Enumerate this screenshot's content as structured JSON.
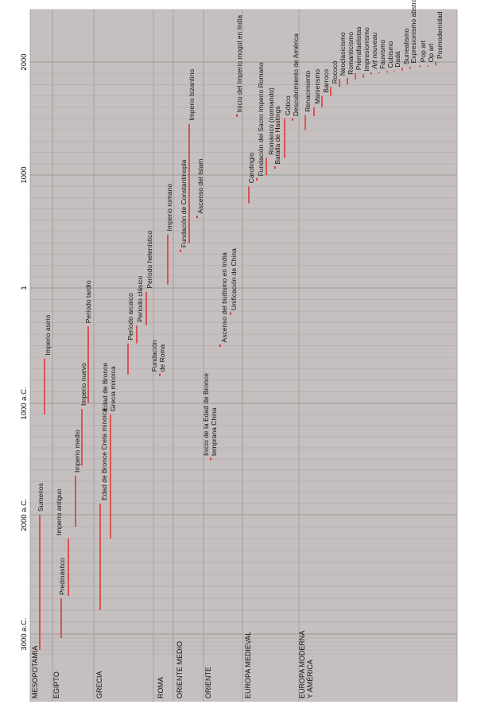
{
  "timeline": {
    "time_labels": [
      {
        "label": "3000 a.C.",
        "year": -3000
      },
      {
        "label": "2000 a.C.",
        "year": -2000
      },
      {
        "label": "1000 a.C.",
        "year": -1000
      },
      {
        "label": "1",
        "year": 1
      },
      {
        "label": "1000",
        "year": 1000
      },
      {
        "label": "2000",
        "year": 2000
      }
    ],
    "regions": [
      {
        "id": "meso",
        "lines": [
          "MESOPOTAMIA"
        ]
      },
      {
        "id": "egipto",
        "lines": [
          "EGIPTO"
        ]
      },
      {
        "id": "grecia",
        "lines": [
          "GRECIA"
        ]
      },
      {
        "id": "roma",
        "lines": [
          "ROMA"
        ]
      },
      {
        "id": "om",
        "lines": [
          "ORIENTE MEDIO"
        ]
      },
      {
        "id": "or",
        "lines": [
          "ORIENTE"
        ]
      },
      {
        "id": "em",
        "lines": [
          "EUROPA MEDIEVAL"
        ]
      },
      {
        "id": "ema",
        "lines": [
          "EUROPA MODERNA",
          "Y AMÉRICA"
        ]
      }
    ],
    "events": [
      {
        "lines": [
          "Sumerios"
        ],
        "start": -3400,
        "end": -2000
      },
      {
        "lines": [
          "Predinástico"
        ],
        "start": -3100,
        "end": -2700
      },
      {
        "lines": [
          "Imperio antiguo"
        ],
        "start": -2680,
        "end": -2200
      },
      {
        "lines": [
          "Imperio medio"
        ],
        "start": -2100,
        "end": -1650
      },
      {
        "lines": [
          "Imperio nuevo"
        ],
        "start": -1560,
        "end": -1050
      },
      {
        "lines": [
          "Período tardío"
        ],
        "start": -1000,
        "end": -332
      },
      {
        "lines": [
          "Imperio asirio"
        ],
        "start": -1100,
        "end": -612
      },
      {
        "lines": [
          "Edad de Bronce Creta minoica"
        ],
        "start": -2800,
        "end": -1900
      },
      {
        "lines": [
          "Edad de Bronce",
          "Grecia minoica"
        ],
        "start": -2200,
        "end": -1100
      },
      {
        "lines": [
          "Período arcaico"
        ],
        "start": -750,
        "end": -480
      },
      {
        "lines": [
          "Período clásico"
        ],
        "start": -480,
        "end": -323
      },
      {
        "lines": [
          "Período helenístico"
        ],
        "start": -323,
        "end": -31
      },
      {
        "lines": [
          "Fundación",
          "de Roma"
        ],
        "start": -753,
        "end": -753
      },
      {
        "lines": [
          "Imperio romano"
        ],
        "start": 30,
        "end": 476
      },
      {
        "lines": [
          "Fundación de Constantinopla"
        ],
        "start": 330,
        "end": 330
      },
      {
        "lines": [
          "Imperio bizantino"
        ],
        "start": 395,
        "end": 1453
      },
      {
        "lines": [
          "Ascenso del Islam"
        ],
        "start": 630,
        "end": 630
      },
      {
        "lines": [
          "Inicio de la Edad de Bronce",
          "temprana China"
        ],
        "start": -1500,
        "end": -1500
      },
      {
        "lines": [
          "Ascenso del budismo en India"
        ],
        "start": -500,
        "end": -500
      },
      {
        "lines": [
          "Unificación de China"
        ],
        "start": -221,
        "end": -221
      },
      {
        "lines": [
          "Inicio del Imperio mogol en India"
        ],
        "start": 1526,
        "end": 1526
      },
      {
        "lines": [
          "Carolingio"
        ],
        "start": 750,
        "end": 900
      },
      {
        "lines": [
          "Fundación del Sacro Imperio Romano"
        ],
        "start": 962,
        "end": 962
      },
      {
        "lines": [
          "Románico (normando)"
        ],
        "start": 1000,
        "end": 1150
      },
      {
        "lines": [
          "Batalla de Hastings"
        ],
        "start": 1066,
        "end": 1066
      },
      {
        "lines": [
          "Gótico"
        ],
        "start": 1150,
        "end": 1500
      },
      {
        "lines": [
          "Descubrimiento de América"
        ],
        "start": 1492,
        "end": 1492
      },
      {
        "lines": [
          "Renacimiento"
        ],
        "start": 1400,
        "end": 1530
      },
      {
        "lines": [
          "Manierismo"
        ],
        "start": 1520,
        "end": 1600
      },
      {
        "lines": [
          "Barroco"
        ],
        "start": 1600,
        "end": 1700
      },
      {
        "lines": [
          "Rococó"
        ],
        "start": 1700,
        "end": 1780
      },
      {
        "lines": [
          "Neoclasicismo"
        ],
        "start": 1780,
        "end": 1850
      },
      {
        "lines": [
          "Romanticismo"
        ],
        "start": 1800,
        "end": 1860
      },
      {
        "lines": [
          "Prerrafaelistas"
        ],
        "start": 1848,
        "end": 1900
      },
      {
        "lines": [
          "Impresionismo"
        ],
        "start": 1860,
        "end": 1890
      },
      {
        "lines": [
          "Art nouveau"
        ],
        "start": 1890,
        "end": 1910,
        "italic": true
      },
      {
        "lines": [
          "Fauvismo"
        ],
        "start": 1900,
        "end": 1910
      },
      {
        "lines": [
          "Cubismo"
        ],
        "start": 1907,
        "end": 1920
      },
      {
        "lines": [
          "Dadá"
        ],
        "start": 1916,
        "end": 1924
      },
      {
        "lines": [
          "Surrealismo"
        ],
        "start": 1924,
        "end": 1950
      },
      {
        "lines": [
          "Expresionismo abstracto"
        ],
        "start": 1940,
        "end": 1960
      },
      {
        "lines": [
          "Pop art"
        ],
        "start": 1955,
        "end": 1970
      },
      {
        "lines": [
          "Op art"
        ],
        "start": 1960,
        "end": 1970
      },
      {
        "lines": [
          "Posmodernidad"
        ],
        "start": 1970,
        "end": 2000
      }
    ],
    "colors": {
      "background": "#c5c0bf",
      "gridline_major": "#9c9796",
      "gridline_minor": "#b3aead",
      "event_bar": "#d83a3a",
      "text": "#111111"
    }
  }
}
